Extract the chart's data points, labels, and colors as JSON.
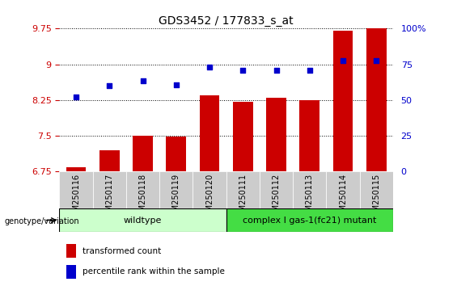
{
  "title": "GDS3452 / 177833_s_at",
  "categories": [
    "GSM250116",
    "GSM250117",
    "GSM250118",
    "GSM250119",
    "GSM250120",
    "GSM250111",
    "GSM250112",
    "GSM250113",
    "GSM250114",
    "GSM250115"
  ],
  "bar_values": [
    6.85,
    7.2,
    7.5,
    7.48,
    8.35,
    8.22,
    8.3,
    8.25,
    9.7,
    9.75
  ],
  "scatter_values": [
    8.32,
    8.55,
    8.65,
    8.57,
    8.95,
    8.87,
    8.88,
    8.87,
    9.08,
    9.08
  ],
  "bar_color": "#cc0000",
  "scatter_color": "#0000cc",
  "ylim_left": [
    6.75,
    9.75
  ],
  "ylim_right": [
    0,
    100
  ],
  "yticks_left": [
    6.75,
    7.5,
    8.25,
    9.0,
    9.75
  ],
  "ytick_labels_left": [
    "6.75",
    "7.5",
    "8.25",
    "9",
    "9.75"
  ],
  "yticks_right": [
    0,
    25,
    50,
    75,
    100
  ],
  "ytick_labels_right": [
    "0",
    "25",
    "50",
    "75",
    "100%"
  ],
  "group1_label": "wildtype",
  "group2_label": "complex I gas-1(fc21) mutant",
  "group1_color": "#ccffcc",
  "group2_color": "#44dd44",
  "genotype_label": "genotype/variation",
  "legend_bar_label": "transformed count",
  "legend_scatter_label": "percentile rank within the sample",
  "tick_label_color_left": "#cc0000",
  "tick_label_color_right": "#0000cc",
  "bar_width": 0.6,
  "scatter_marker": "s",
  "scatter_size": 18,
  "xtick_bg_color": "#cccccc"
}
